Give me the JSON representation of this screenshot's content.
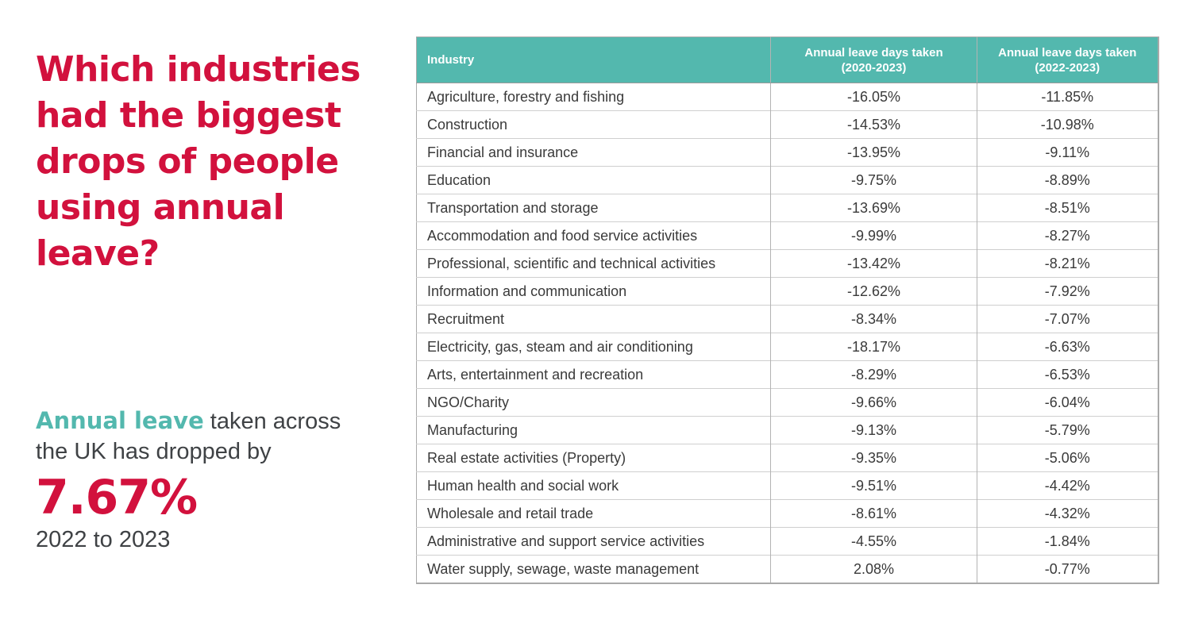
{
  "colors": {
    "accent_red": "#d2113d",
    "accent_teal": "#53b8ae",
    "text_dark": "#3f4245"
  },
  "headline": {
    "title": "Which industries had the biggest drops of people using annual leave?"
  },
  "summary": {
    "highlight": "Annual leave",
    "line1_rest": " taken across",
    "line2": "the UK has dropped by",
    "stat": "7.67%",
    "period": "2022 to 2023"
  },
  "table": {
    "columns": [
      {
        "label": "Industry",
        "sublabel": ""
      },
      {
        "label": "Annual leave days taken",
        "sublabel": "(2020-2023)"
      },
      {
        "label": "Annual leave days taken",
        "sublabel": "(2022-2023)"
      }
    ],
    "rows": [
      {
        "industry": "Agriculture, forestry and fishing",
        "change_2020_2023": "-16.05%",
        "change_2022_2023": "-11.85%"
      },
      {
        "industry": "Construction",
        "change_2020_2023": "-14.53%",
        "change_2022_2023": "-10.98%"
      },
      {
        "industry": "Financial and insurance",
        "change_2020_2023": "-13.95%",
        "change_2022_2023": "-9.11%"
      },
      {
        "industry": "Education",
        "change_2020_2023": "-9.75%",
        "change_2022_2023": "-8.89%"
      },
      {
        "industry": "Transportation and storage",
        "change_2020_2023": "-13.69%",
        "change_2022_2023": "-8.51%"
      },
      {
        "industry": "Accommodation and food service activities",
        "change_2020_2023": "-9.99%",
        "change_2022_2023": "-8.27%"
      },
      {
        "industry": "Professional, scientific and technical activities",
        "change_2020_2023": "-13.42%",
        "change_2022_2023": "-8.21%"
      },
      {
        "industry": "Information and communication",
        "change_2020_2023": "-12.62%",
        "change_2022_2023": "-7.92%"
      },
      {
        "industry": "Recruitment",
        "change_2020_2023": "-8.34%",
        "change_2022_2023": "-7.07%"
      },
      {
        "industry": "Electricity, gas, steam and air conditioning",
        "change_2020_2023": "-18.17%",
        "change_2022_2023": "-6.63%"
      },
      {
        "industry": "Arts, entertainment and recreation",
        "change_2020_2023": "-8.29%",
        "change_2022_2023": "-6.53%"
      },
      {
        "industry": "NGO/Charity",
        "change_2020_2023": "-9.66%",
        "change_2022_2023": "-6.04%"
      },
      {
        "industry": "Manufacturing",
        "change_2020_2023": "-9.13%",
        "change_2022_2023": "-5.79%"
      },
      {
        "industry": "Real estate activities (Property)",
        "change_2020_2023": "-9.35%",
        "change_2022_2023": "-5.06%"
      },
      {
        "industry": "Human health and social work",
        "change_2020_2023": "-9.51%",
        "change_2022_2023": "-4.42%"
      },
      {
        "industry": "Wholesale and retail trade",
        "change_2020_2023": "-8.61%",
        "change_2022_2023": "-4.32%"
      },
      {
        "industry": "Administrative and support service activities",
        "change_2020_2023": "-4.55%",
        "change_2022_2023": "-1.84%"
      },
      {
        "industry": "Water supply, sewage, waste management",
        "change_2020_2023": "2.08%",
        "change_2022_2023": "-0.77%"
      }
    ]
  },
  "chart_data": {
    "type": "table",
    "title": "Which industries had the biggest drops of people using annual leave?",
    "categories": [
      "Agriculture, forestry and fishing",
      "Construction",
      "Financial and insurance",
      "Education",
      "Transportation and storage",
      "Accommodation and food service activities",
      "Professional, scientific and technical activities",
      "Information and communication",
      "Recruitment",
      "Electricity, gas, steam and air conditioning",
      "Arts, entertainment and recreation",
      "NGO/Charity",
      "Manufacturing",
      "Real estate activities (Property)",
      "Human health and social work",
      "Wholesale and retail trade",
      "Administrative and support service activities",
      "Water supply, sewage, waste management"
    ],
    "series": [
      {
        "name": "Annual leave days taken (2020-2023)",
        "values": [
          -16.05,
          -14.53,
          -13.95,
          -9.75,
          -13.69,
          -9.99,
          -13.42,
          -12.62,
          -8.34,
          -18.17,
          -8.29,
          -9.66,
          -9.13,
          -9.35,
          -9.51,
          -8.61,
          -4.55,
          2.08
        ]
      },
      {
        "name": "Annual leave days taken (2022-2023)",
        "values": [
          -11.85,
          -10.98,
          -9.11,
          -8.89,
          -8.51,
          -8.27,
          -8.21,
          -7.92,
          -7.07,
          -6.63,
          -6.53,
          -6.04,
          -5.79,
          -5.06,
          -4.42,
          -4.32,
          -1.84,
          -0.77
        ]
      }
    ],
    "annotations": [
      "Annual leave taken across the UK has dropped by 7.67% 2022 to 2023"
    ],
    "units": "percent",
    "sorted_by": "Annual leave days taken (2022-2023) ascending magnitude"
  }
}
